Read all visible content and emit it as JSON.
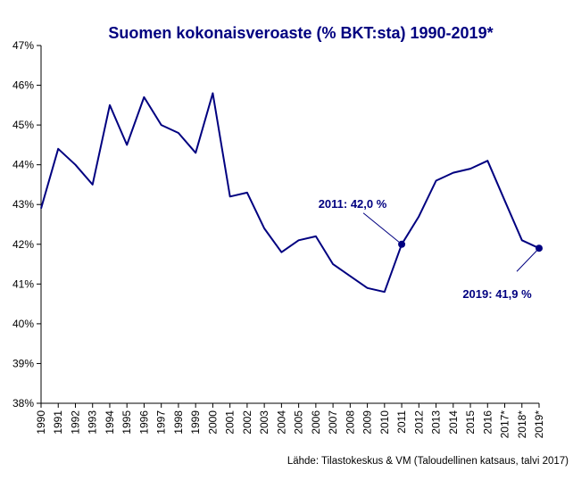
{
  "chart_data": {
    "type": "line",
    "title": "Suomen kokonaisveroaste (% BKT:sta) 1990-2019*",
    "xlabel": "",
    "ylabel": "",
    "categories": [
      "1990",
      "1991",
      "1992",
      "1993",
      "1994",
      "1995",
      "1996",
      "1997",
      "1998",
      "1999",
      "2000",
      "2001",
      "2002",
      "2003",
      "2004",
      "2005",
      "2006",
      "2007",
      "2008",
      "2009",
      "2010",
      "2011",
      "2012",
      "2013",
      "2014",
      "2015",
      "2016",
      "2017*",
      "2018*",
      "2019*"
    ],
    "series": [
      {
        "values": [
          42.9,
          44.4,
          44.0,
          43.5,
          45.5,
          44.5,
          45.7,
          45.0,
          44.8,
          44.3,
          45.8,
          43.2,
          43.3,
          42.4,
          41.8,
          42.1,
          42.2,
          41.5,
          41.2,
          40.9,
          40.8,
          42.0,
          42.7,
          43.6,
          43.8,
          43.9,
          44.1,
          43.1,
          42.1,
          41.9
        ]
      }
    ],
    "ylim": [
      38,
      47
    ],
    "yticks": [
      "38%",
      "39%",
      "40%",
      "41%",
      "42%",
      "43%",
      "44%",
      "45%",
      "46%",
      "47%"
    ],
    "grid": false,
    "legend": "none",
    "line_color": "#000080",
    "annotations": [
      {
        "text": "2011: 42,0 %",
        "category": "2011",
        "value": 42.0
      },
      {
        "text": "2019: 41,9 %",
        "category": "2019*",
        "value": 41.9
      }
    ],
    "source": "Lähde: Tilastokeskus & VM (Taloudellinen  katsaus, talvi 2017)"
  }
}
